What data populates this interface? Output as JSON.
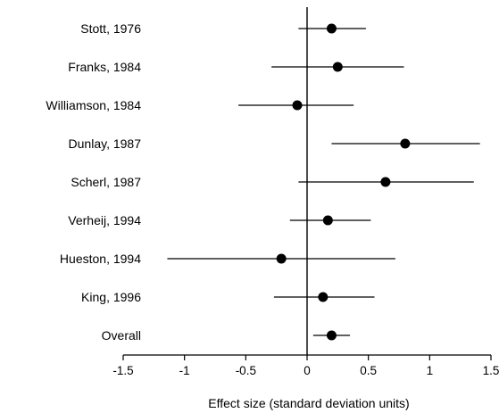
{
  "chart_data": {
    "type": "scatter",
    "title": "",
    "xlabel": "Effect size (standard deviation units)",
    "ylabel": "",
    "xlim": [
      -1.5,
      1.5
    ],
    "xticks": [
      -1.5,
      -1,
      -0.5,
      0,
      0.5,
      1,
      1.5
    ],
    "xtick_labels": [
      "-1.5",
      "-1",
      "-0.5",
      "0",
      "0.5",
      "1",
      "1.5"
    ],
    "grid": false,
    "reference_line_x": 0,
    "studies": [
      {
        "label": "Stott, 1976",
        "estimate": 0.2,
        "ci": [
          -0.07,
          0.48
        ]
      },
      {
        "label": "Franks, 1984",
        "estimate": 0.25,
        "ci": [
          -0.29,
          0.79
        ]
      },
      {
        "label": "Williamson, 1984",
        "estimate": -0.08,
        "ci": [
          -0.56,
          0.38
        ]
      },
      {
        "label": "Dunlay, 1987",
        "estimate": 0.8,
        "ci": [
          0.2,
          1.41
        ]
      },
      {
        "label": "Scherl, 1987",
        "estimate": 0.64,
        "ci": [
          -0.07,
          1.36
        ]
      },
      {
        "label": "Verheij, 1994",
        "estimate": 0.17,
        "ci": [
          -0.14,
          0.52
        ]
      },
      {
        "label": "Hueston, 1994",
        "estimate": -0.21,
        "ci": [
          -1.14,
          0.72
        ]
      },
      {
        "label": "King, 1996",
        "estimate": 0.13,
        "ci": [
          -0.27,
          0.55
        ]
      },
      {
        "label": "Overall",
        "estimate": 0.2,
        "ci": [
          0.05,
          0.35
        ]
      }
    ]
  }
}
